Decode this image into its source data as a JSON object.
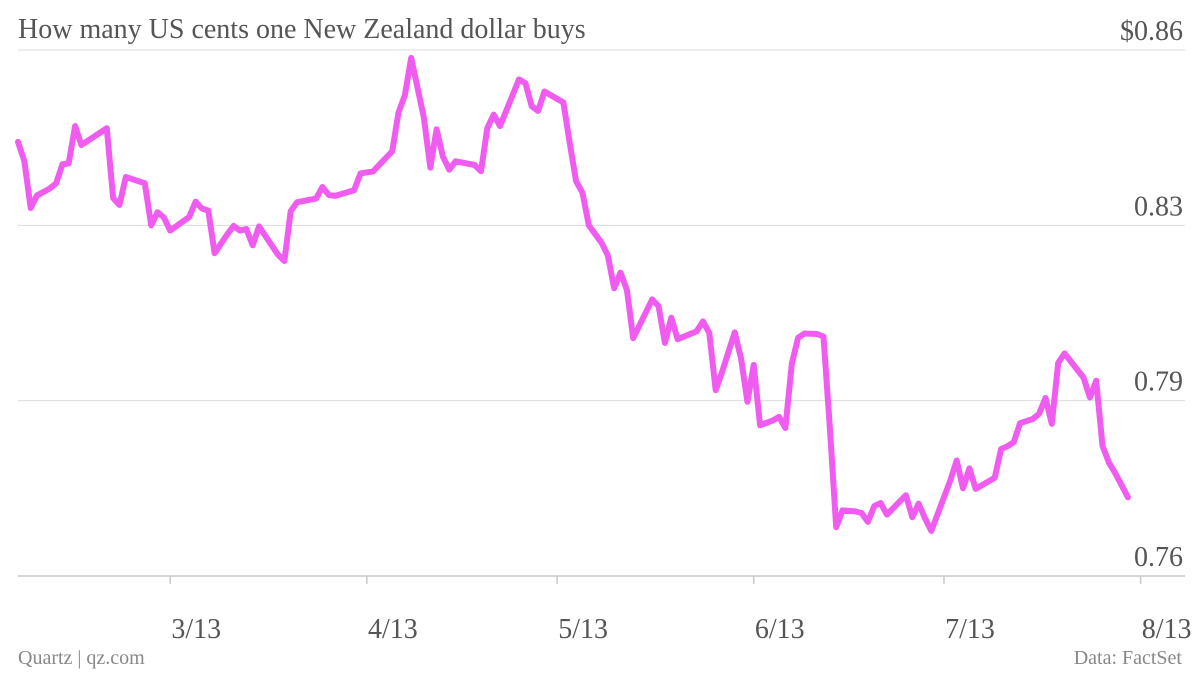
{
  "title": "How many US cents one New Zealand dollar buys",
  "footer": {
    "left": "Quartz | qz.com",
    "right": "Data: FactSet"
  },
  "colors": {
    "line": "#f05cf0",
    "grid": "#dddddd",
    "axis": "#c8c8c8"
  },
  "chart_data": {
    "type": "line",
    "title": "How many US cents one New Zealand dollar buys",
    "xlabel": "",
    "ylabel": "",
    "y_ticks": [
      {
        "value": 0.86,
        "label": "$0.86"
      },
      {
        "value": 0.8266,
        "label": "0.83"
      },
      {
        "value": 0.7932,
        "label": "0.79"
      },
      {
        "value": 0.7598,
        "label": "0.76"
      }
    ],
    "ylim": [
      0.7598,
      0.86
    ],
    "x_ticks": [
      {
        "day": 31,
        "label": "3/13"
      },
      {
        "day": 62,
        "label": "4/13"
      },
      {
        "day": 92,
        "label": "5/13"
      },
      {
        "day": 123,
        "label": "6/13"
      },
      {
        "day": 153,
        "label": "7/13"
      },
      {
        "day": 184,
        "label": "8/13"
      }
    ],
    "xlim": [
      7,
      191
    ],
    "series": [
      {
        "values": [
          [
            7,
            0.8425
          ],
          [
            8,
            0.8389
          ],
          [
            9,
            0.8299
          ],
          [
            10,
            0.8323
          ],
          [
            12,
            0.8336
          ],
          [
            13,
            0.8346
          ],
          [
            14,
            0.8382
          ],
          [
            15,
            0.8384
          ],
          [
            16,
            0.8455
          ],
          [
            17,
            0.8419
          ],
          [
            21,
            0.8451
          ],
          [
            22,
            0.8318
          ],
          [
            23,
            0.8305
          ],
          [
            24,
            0.8358
          ],
          [
            27,
            0.8346
          ],
          [
            28,
            0.8266
          ],
          [
            29,
            0.8291
          ],
          [
            30,
            0.8281
          ],
          [
            31,
            0.8256
          ],
          [
            34,
            0.8282
          ],
          [
            35,
            0.8311
          ],
          [
            36,
            0.8298
          ],
          [
            37,
            0.8294
          ],
          [
            38,
            0.8213
          ],
          [
            40,
            0.8249
          ],
          [
            41,
            0.8265
          ],
          [
            42,
            0.8256
          ],
          [
            43,
            0.8259
          ],
          [
            44,
            0.8228
          ],
          [
            45,
            0.8264
          ],
          [
            48,
            0.821
          ],
          [
            49,
            0.8198
          ],
          [
            50,
            0.8293
          ],
          [
            51,
            0.831
          ],
          [
            54,
            0.8317
          ],
          [
            55,
            0.8339
          ],
          [
            56,
            0.8324
          ],
          [
            57,
            0.8322
          ],
          [
            60,
            0.8333
          ],
          [
            61,
            0.8365
          ],
          [
            63,
            0.8369
          ],
          [
            66,
            0.8407
          ],
          [
            67,
            0.8481
          ],
          [
            68,
            0.8514
          ],
          [
            69,
            0.8585
          ],
          [
            71,
            0.8471
          ],
          [
            72,
            0.8376
          ],
          [
            73,
            0.8449
          ],
          [
            74,
            0.8397
          ],
          [
            75,
            0.8372
          ],
          [
            76,
            0.8388
          ],
          [
            79,
            0.8381
          ],
          [
            80,
            0.8369
          ],
          [
            81,
            0.8451
          ],
          [
            82,
            0.8477
          ],
          [
            83,
            0.8455
          ],
          [
            86,
            0.8544
          ],
          [
            87,
            0.8537
          ],
          [
            88,
            0.8493
          ],
          [
            89,
            0.8484
          ],
          [
            90,
            0.8521
          ],
          [
            93,
            0.85
          ],
          [
            94,
            0.8422
          ],
          [
            95,
            0.835
          ],
          [
            96,
            0.8328
          ],
          [
            97,
            0.8266
          ],
          [
            99,
            0.8233
          ],
          [
            100,
            0.8209
          ],
          [
            101,
            0.8146
          ],
          [
            102,
            0.8176
          ],
          [
            103,
            0.8143
          ],
          [
            104,
            0.8051
          ],
          [
            107,
            0.8125
          ],
          [
            108,
            0.8112
          ],
          [
            109,
            0.8042
          ],
          [
            110,
            0.809
          ],
          [
            111,
            0.8049
          ],
          [
            114,
            0.8064
          ],
          [
            115,
            0.8083
          ],
          [
            116,
            0.8061
          ],
          [
            117,
            0.7952
          ],
          [
            118,
            0.7986
          ],
          [
            120,
            0.8062
          ],
          [
            121,
            0.8013
          ],
          [
            122,
            0.793
          ],
          [
            123,
            0.8
          ],
          [
            124,
            0.7885
          ],
          [
            126,
            0.7894
          ],
          [
            127,
            0.7901
          ],
          [
            128,
            0.788
          ],
          [
            129,
            0.8002
          ],
          [
            130,
            0.8052
          ],
          [
            131,
            0.806
          ],
          [
            133,
            0.8059
          ],
          [
            134,
            0.8054
          ],
          [
            135,
            0.7882
          ],
          [
            136,
            0.7691
          ],
          [
            137,
            0.7723
          ],
          [
            139,
            0.7721
          ],
          [
            140,
            0.7718
          ],
          [
            141,
            0.7701
          ],
          [
            142,
            0.7731
          ],
          [
            143,
            0.7737
          ],
          [
            144,
            0.7715
          ],
          [
            147,
            0.7752
          ],
          [
            148,
            0.771
          ],
          [
            149,
            0.7736
          ],
          [
            150,
            0.7708
          ],
          [
            151,
            0.7684
          ],
          [
            154,
            0.778
          ],
          [
            155,
            0.7818
          ],
          [
            156,
            0.7765
          ],
          [
            157,
            0.7803
          ],
          [
            158,
            0.7764
          ],
          [
            161,
            0.7785
          ],
          [
            162,
            0.784
          ],
          [
            163,
            0.7845
          ],
          [
            164,
            0.7853
          ],
          [
            165,
            0.7889
          ],
          [
            167,
            0.7897
          ],
          [
            168,
            0.7907
          ],
          [
            169,
            0.7937
          ],
          [
            170,
            0.7888
          ],
          [
            171,
            0.8004
          ],
          [
            172,
            0.8022
          ],
          [
            175,
            0.7976
          ],
          [
            176,
            0.7938
          ],
          [
            177,
            0.797
          ],
          [
            178,
            0.7846
          ],
          [
            179,
            0.7814
          ],
          [
            180,
            0.7794
          ],
          [
            181,
            0.7771
          ],
          [
            182,
            0.7748
          ]
        ]
      }
    ]
  }
}
